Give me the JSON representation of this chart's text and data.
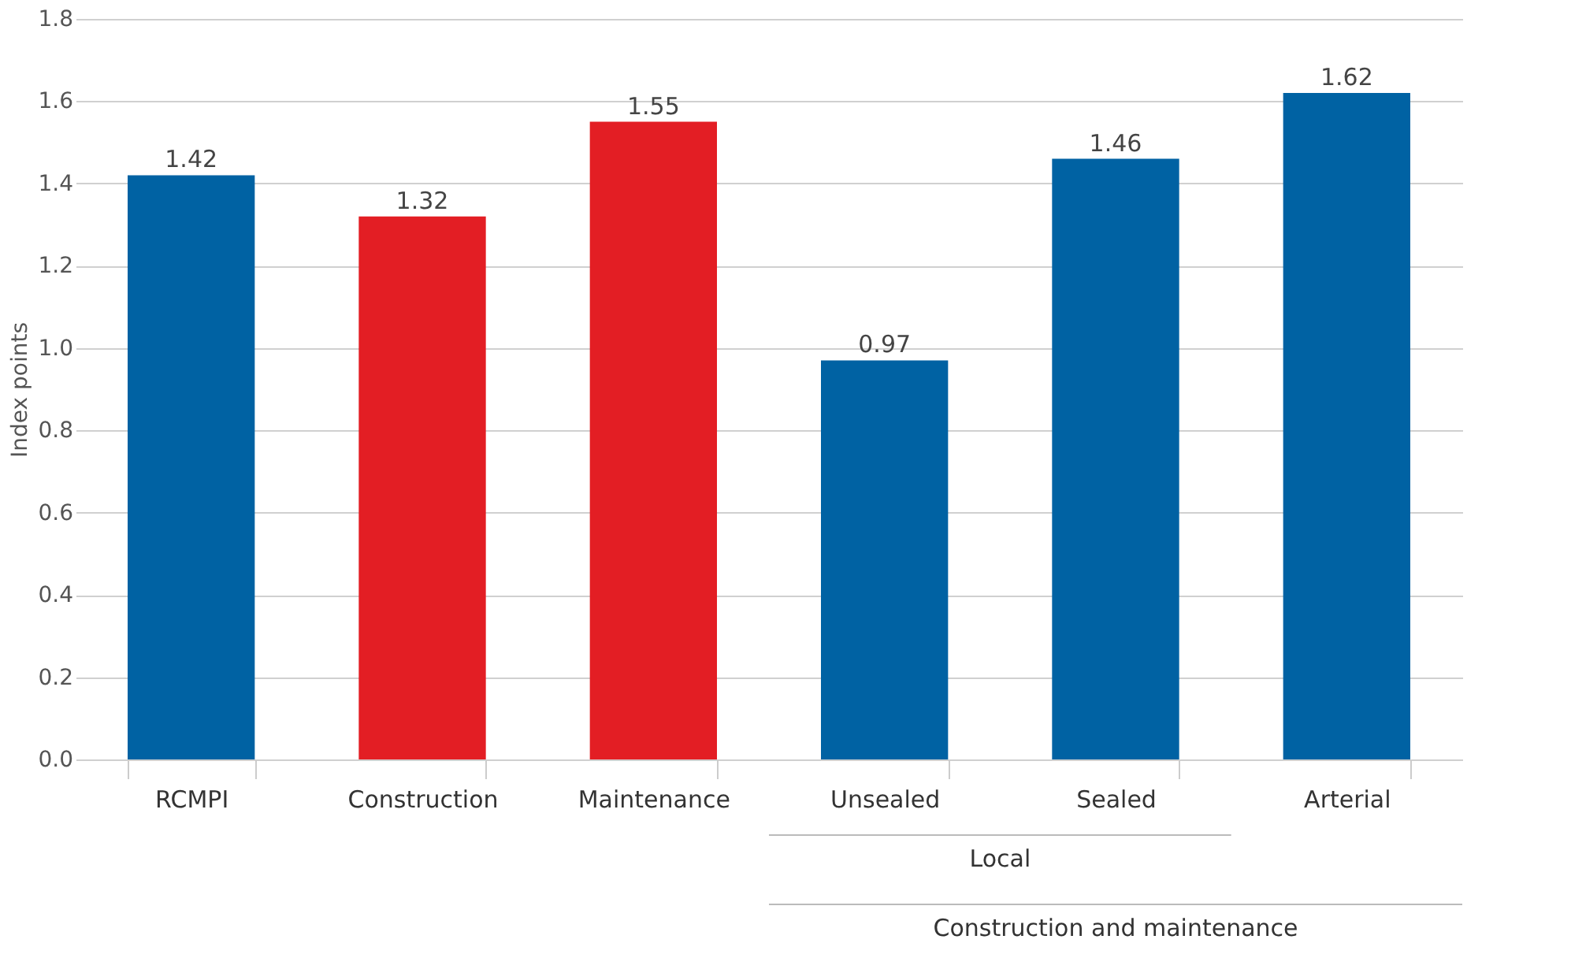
{
  "chart_data": {
    "type": "bar",
    "ylabel": "Index points",
    "categories": [
      "RCMPI",
      "Construction",
      "Maintenance",
      "Unsealed",
      "Sealed",
      "Arterial"
    ],
    "values": [
      1.42,
      1.32,
      1.55,
      0.97,
      1.46,
      1.62
    ],
    "colors": [
      "#0062a3",
      "#e31e24",
      "#e31e24",
      "#0062a3",
      "#0062a3",
      "#0062a3"
    ],
    "ylim": [
      0,
      1.8
    ],
    "yticks": [
      {
        "value": 0,
        "label": "0.0"
      },
      {
        "value": 0.2,
        "label": "0.2"
      },
      {
        "value": 0.4,
        "label": "0.4"
      },
      {
        "value": 0.6,
        "label": "0.6"
      },
      {
        "value": 0.8,
        "label": "0.8"
      },
      {
        "value": 1.0,
        "label": "1.0"
      },
      {
        "value": 1.2,
        "label": "1.2"
      },
      {
        "value": 1.4,
        "label": "1.4"
      },
      {
        "value": 1.6,
        "label": "1.6"
      },
      {
        "value": 1.8,
        "label": "1.8"
      }
    ],
    "grid": "y",
    "data_labels": true,
    "annotations": [
      "Local",
      "Construction and maintenance"
    ]
  }
}
